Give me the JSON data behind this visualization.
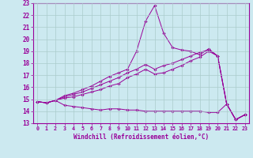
{
  "title": "",
  "xlabel": "Windchill (Refroidissement éolien,°C)",
  "background_color": "#cce9f0",
  "line_color": "#990099",
  "grid_color": "#aacccc",
  "xlim": [
    -0.5,
    23.5
  ],
  "ylim": [
    13,
    23
  ],
  "xticks": [
    0,
    1,
    2,
    3,
    4,
    5,
    6,
    7,
    8,
    9,
    10,
    11,
    12,
    13,
    14,
    15,
    16,
    17,
    18,
    19,
    20,
    21,
    22,
    23
  ],
  "yticks": [
    13,
    14,
    15,
    16,
    17,
    18,
    19,
    20,
    21,
    22,
    23
  ],
  "series": [
    [
      14.8,
      14.7,
      14.9,
      14.5,
      14.4,
      14.3,
      14.2,
      14.1,
      14.2,
      14.2,
      14.1,
      14.1,
      14.0,
      14.0,
      14.0,
      14.0,
      14.0,
      14.0,
      14.0,
      13.9,
      13.9,
      14.6,
      13.3,
      13.7
    ],
    [
      14.8,
      14.7,
      14.9,
      15.1,
      15.2,
      15.4,
      15.6,
      15.8,
      16.1,
      16.3,
      16.8,
      17.1,
      17.5,
      17.1,
      17.2,
      17.5,
      17.8,
      18.2,
      18.5,
      19.0,
      18.6,
      14.6,
      13.3,
      13.7
    ],
    [
      14.8,
      14.7,
      14.9,
      15.2,
      15.4,
      15.6,
      15.9,
      16.2,
      16.5,
      16.8,
      17.2,
      17.5,
      17.9,
      17.5,
      17.8,
      18.0,
      18.3,
      18.6,
      18.9,
      19.1,
      18.6,
      14.6,
      13.3,
      13.7
    ],
    [
      14.8,
      14.7,
      14.9,
      15.3,
      15.5,
      15.8,
      16.1,
      16.5,
      16.9,
      17.2,
      17.5,
      19.0,
      21.5,
      22.8,
      20.5,
      19.3,
      19.1,
      19.0,
      18.7,
      19.2,
      18.6,
      14.6,
      13.3,
      13.7
    ]
  ]
}
